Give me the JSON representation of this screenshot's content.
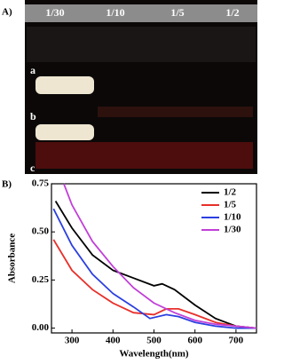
{
  "panels": {
    "a": "A)",
    "b": "B)"
  },
  "photo": {
    "columns": [
      "1/30",
      "1/10",
      "1/5",
      "1/2"
    ],
    "rows": [
      "a",
      "b",
      "c"
    ]
  },
  "chart_data": {
    "type": "line",
    "xlabel": "Wavelength(nm)",
    "ylabel": "Absorbance",
    "xlim": [
      250,
      750
    ],
    "ylim": [
      -0.025,
      0.75
    ],
    "xticks": [
      300,
      400,
      500,
      600,
      700
    ],
    "yticks": [
      {
        "value": 0,
        "label": "0.00"
      },
      {
        "value": 0.25,
        "label": "0.25"
      },
      {
        "value": 0.5,
        "label": "0.50"
      },
      {
        "value": 0.75,
        "label": "0.75"
      }
    ],
    "legend": "upper right",
    "series": [
      {
        "name": "1/2",
        "color": "#000000",
        "x": [
          260,
          300,
          350,
          400,
          450,
          500,
          520,
          550,
          600,
          650,
          700,
          750
        ],
        "values": [
          0.66,
          0.52,
          0.38,
          0.3,
          0.26,
          0.22,
          0.23,
          0.2,
          0.12,
          0.05,
          0.01,
          0.0
        ]
      },
      {
        "name": "1/5",
        "color": "#e8302a",
        "x": [
          255,
          300,
          350,
          400,
          450,
          500,
          530,
          560,
          600,
          650,
          700,
          750
        ],
        "values": [
          0.46,
          0.3,
          0.2,
          0.13,
          0.08,
          0.07,
          0.1,
          0.1,
          0.07,
          0.03,
          0.01,
          0.0
        ]
      },
      {
        "name": "1/10",
        "color": "#2b3fe0",
        "x": [
          255,
          300,
          350,
          400,
          450,
          490,
          530,
          560,
          600,
          650,
          700,
          750
        ],
        "values": [
          0.62,
          0.43,
          0.28,
          0.18,
          0.11,
          0.05,
          0.07,
          0.06,
          0.03,
          0.01,
          0.0,
          0.0
        ]
      },
      {
        "name": "1/30",
        "color": "#c13fd8",
        "x": [
          280,
          300,
          350,
          400,
          450,
          500,
          550,
          600,
          650,
          700,
          750
        ],
        "values": [
          0.75,
          0.64,
          0.45,
          0.32,
          0.21,
          0.13,
          0.08,
          0.04,
          0.02,
          0.01,
          0.0
        ]
      }
    ]
  }
}
